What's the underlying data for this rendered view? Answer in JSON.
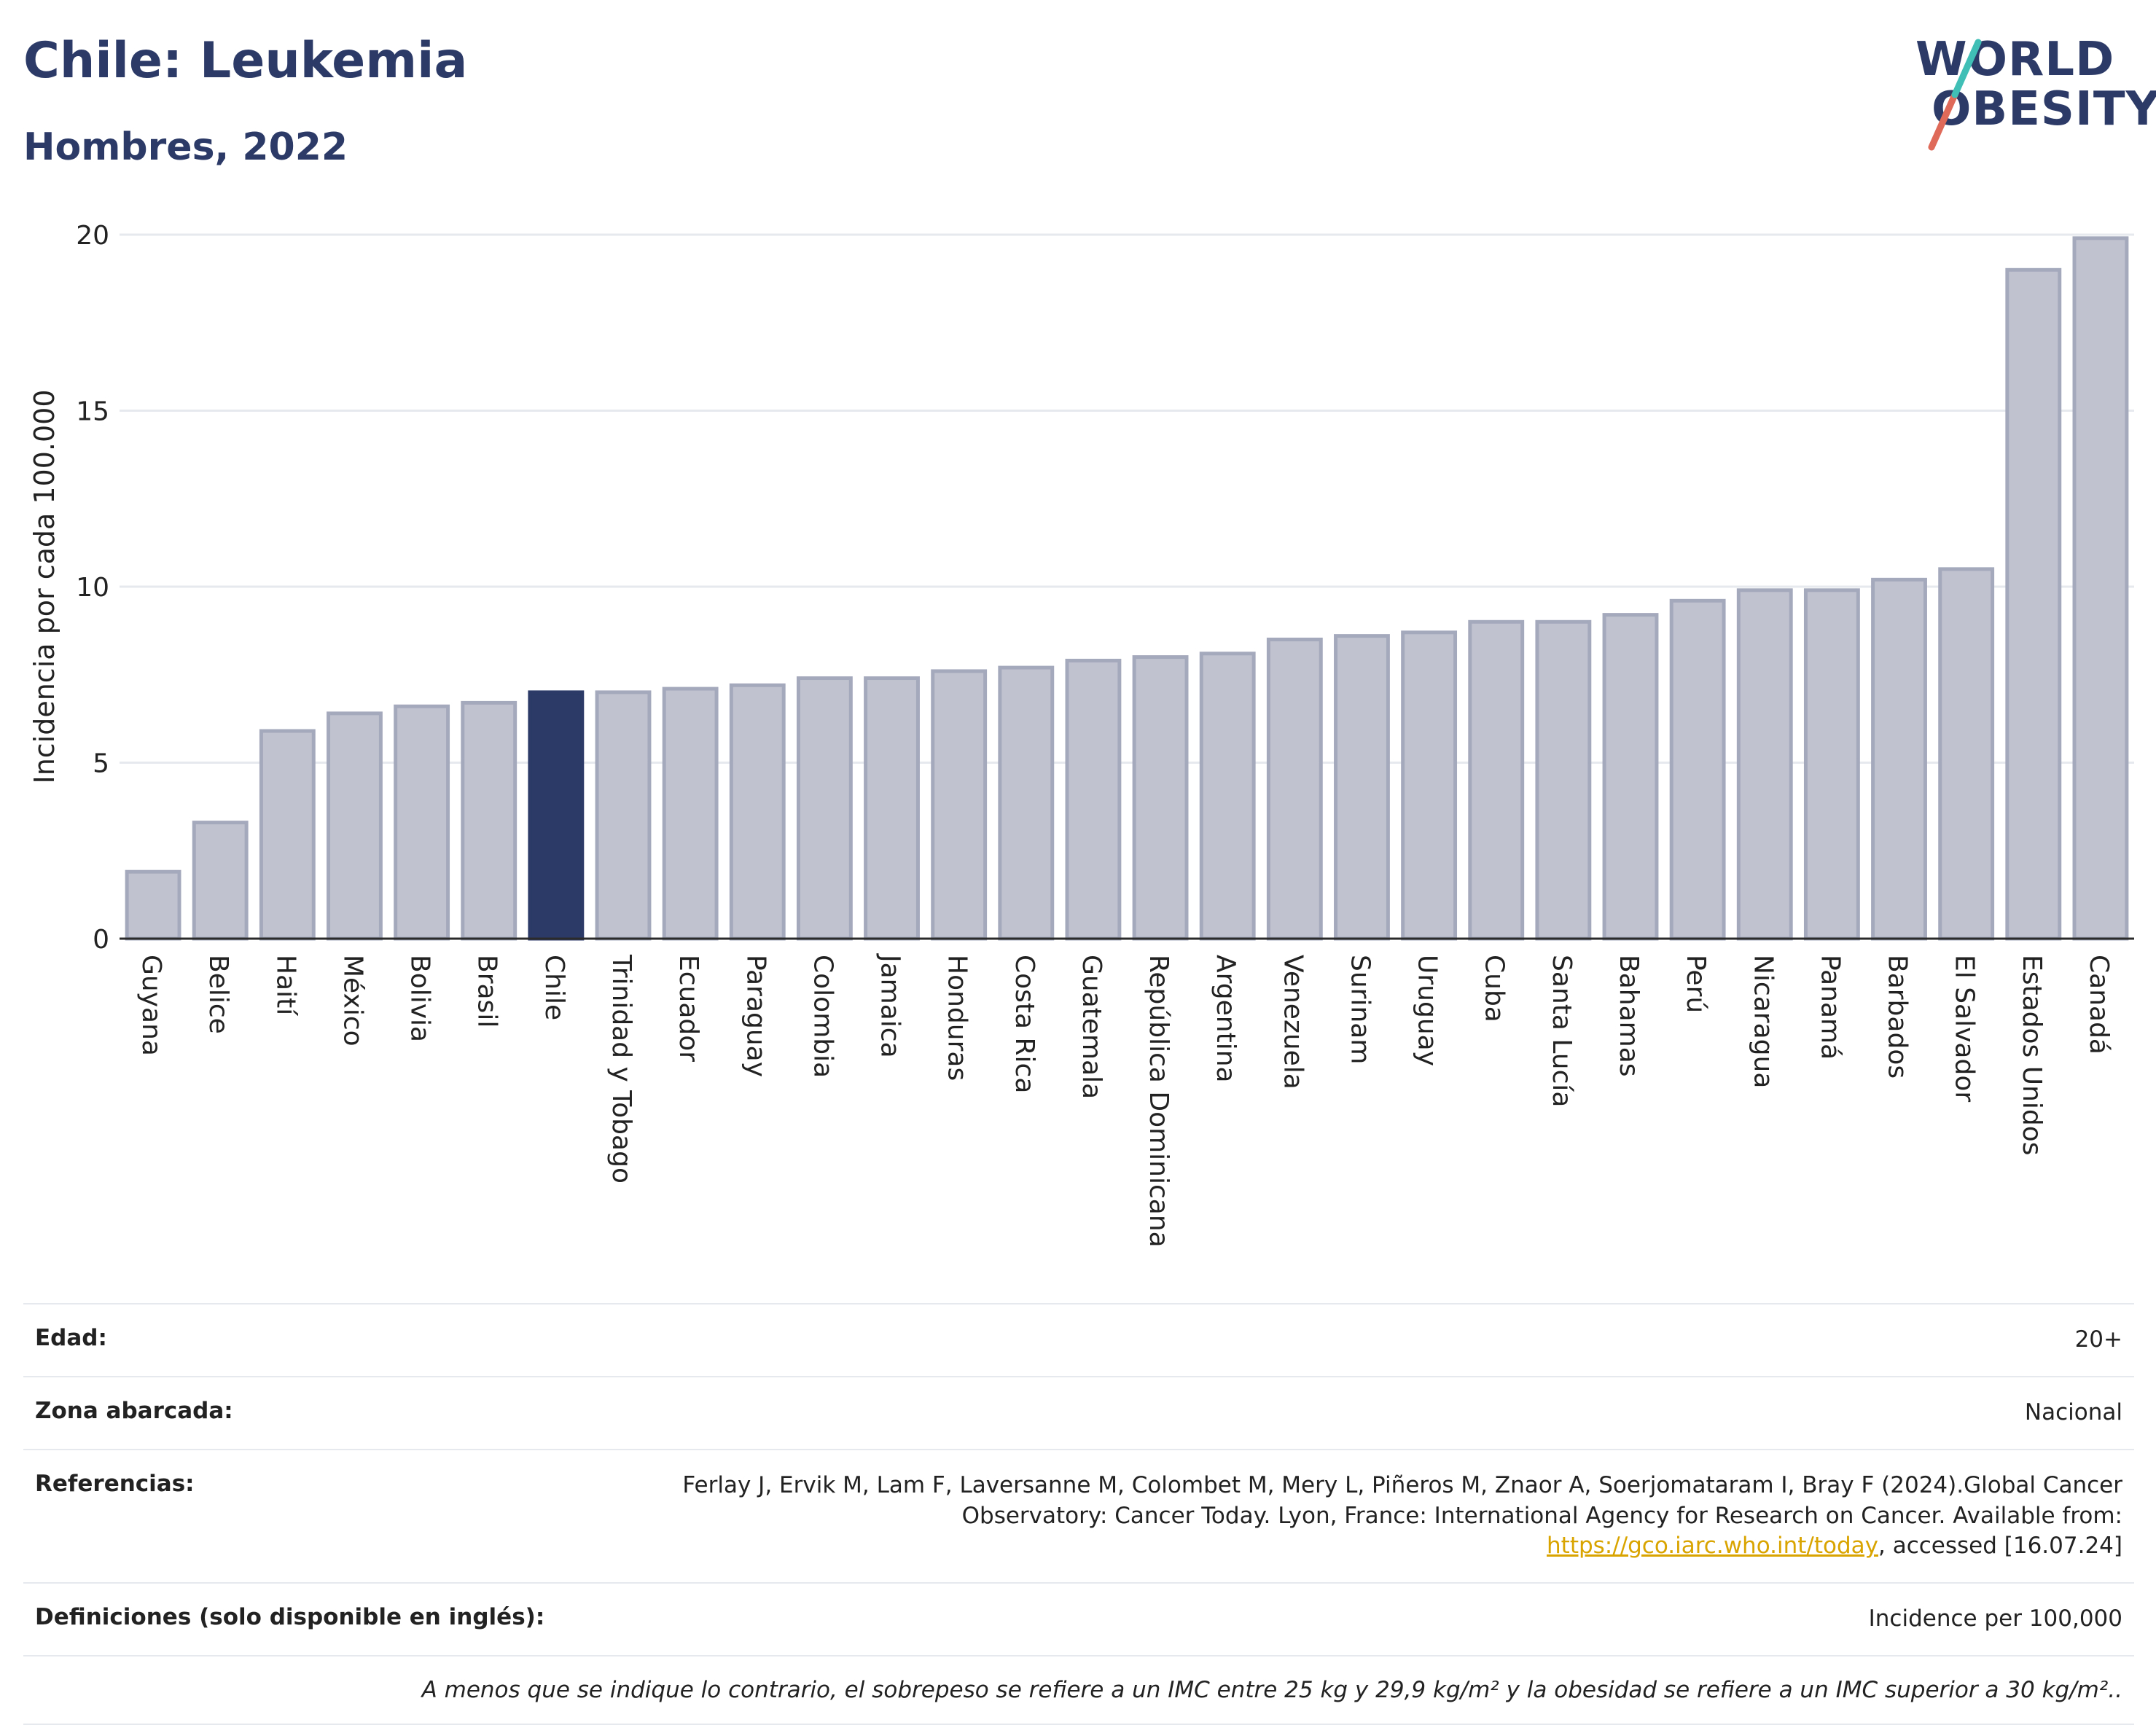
{
  "title": "Chile: Leukemia",
  "subtitle": "Hombres, 2022",
  "logo": {
    "line1": "WORLD",
    "line2": "OBESITY"
  },
  "colors": {
    "bar": "#c0c3cf",
    "bar_stroke": "#a5a9bc",
    "highlight": "#2b3a67",
    "grid": "#e6e9ee",
    "text": "#222222"
  },
  "chart_data": {
    "type": "bar",
    "ylabel": "Incidencia por cada 100.000",
    "xlabel": "",
    "ylim": [
      0,
      20
    ],
    "yticks": [
      0,
      5,
      10,
      15,
      20
    ],
    "highlight": "Chile",
    "categories": [
      "Guyana",
      "Belice",
      "Haití",
      "México",
      "Bolivia",
      "Brasil",
      "Chile",
      "Trinidad y Tobago",
      "Ecuador",
      "Paraguay",
      "Colombia",
      "Jamaica",
      "Honduras",
      "Costa Rica",
      "Guatemala",
      "República Dominicana",
      "Argentina",
      "Venezuela",
      "Surinam",
      "Uruguay",
      "Cuba",
      "Santa Lucía",
      "Bahamas",
      "Perú",
      "Nicaragua",
      "Panamá",
      "Barbados",
      "El Salvador",
      "Estados Unidos",
      "Canadá"
    ],
    "values": [
      1.9,
      3.3,
      5.9,
      6.4,
      6.6,
      6.7,
      7.0,
      7.0,
      7.1,
      7.2,
      7.4,
      7.4,
      7.6,
      7.7,
      7.9,
      8.0,
      8.1,
      8.5,
      8.6,
      8.7,
      9.0,
      9.0,
      9.2,
      9.6,
      9.9,
      9.9,
      10.2,
      10.5,
      19.0,
      19.9
    ],
    "grid": true,
    "legend": "none"
  },
  "info": {
    "age_label": "Edad:",
    "age_value": "20+",
    "zone_label": "Zona abarcada:",
    "zone_value": "Nacional",
    "refs_label": "Referencias:",
    "refs_text1": "Ferlay J, Ervik M, Lam F, Laversanne M, Colombet M, Mery L, Piñeros M, Znaor A, Soerjomataram I, Bray F (2024).Global Cancer Observatory: Cancer Today. Lyon, France: International Agency for Research on Cancer. Available from: ",
    "refs_link": "https://gco.iarc.who.int/today",
    "refs_text2": ", accessed [16.07.24]",
    "defs_label": "Definiciones (solo disponible en inglés):",
    "defs_value": "Incidence per 100,000",
    "note": "A menos que se indique lo contrario, el sobrepeso se refiere a un IMC entre 25 kg y 29,9 kg/m² y la obesidad se refiere a un IMC superior a 30 kg/m².."
  }
}
